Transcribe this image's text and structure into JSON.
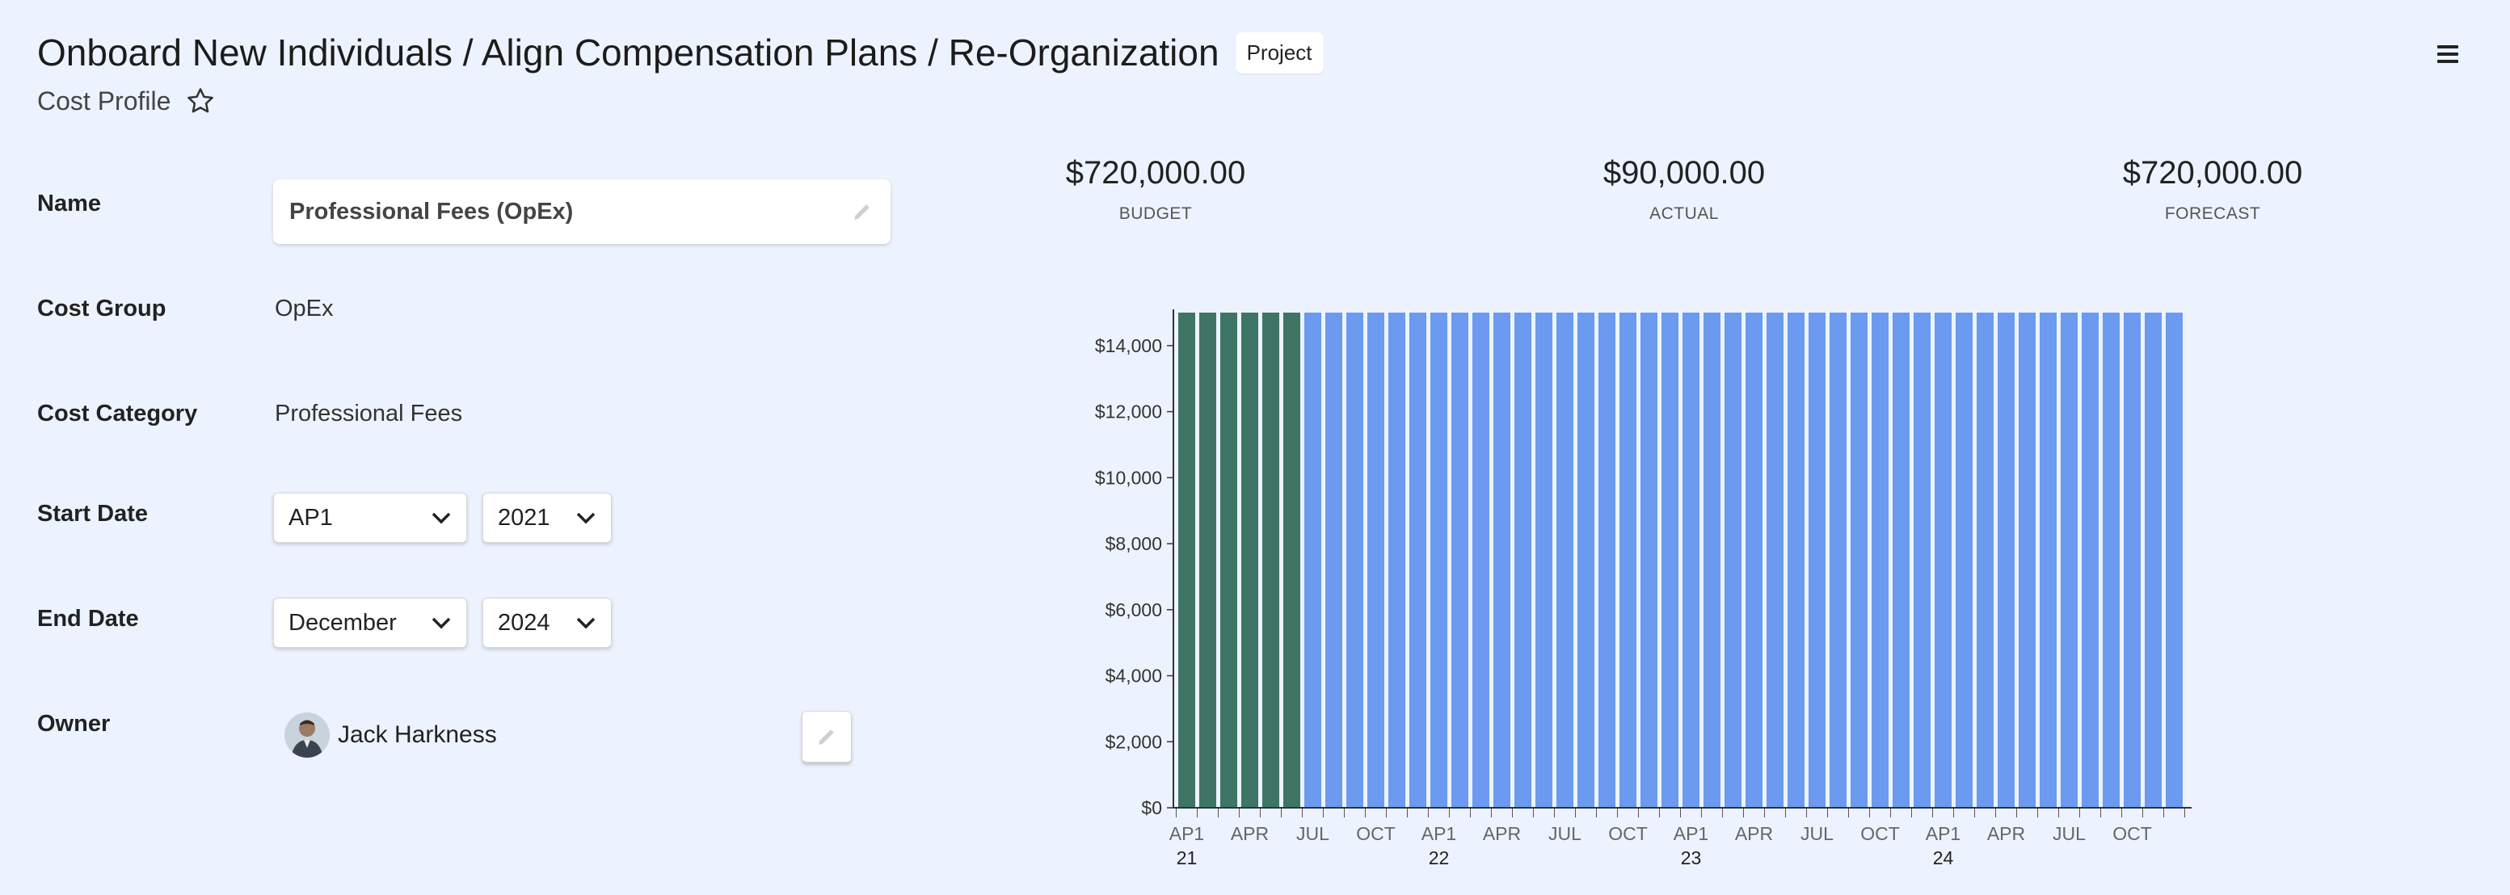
{
  "header": {
    "title": "Onboard New Individuals / Align Compensation Plans / Re-Organization",
    "badge": "Project",
    "menu_icon": "hamburger-menu-icon"
  },
  "subtitle": {
    "text": "Cost Profile",
    "icon": "star-outline-icon"
  },
  "form": {
    "name_label": "Name",
    "name_value": "Professional Fees (OpEx)",
    "cost_group_label": "Cost Group",
    "cost_group_value": "OpEx",
    "cost_category_label": "Cost Category",
    "cost_category_value": "Professional Fees",
    "start_date_label": "Start Date",
    "start_period": "AP1",
    "start_year": "2021",
    "end_date_label": "End Date",
    "end_period": "December",
    "end_year": "2024",
    "owner_label": "Owner",
    "owner_name": "Jack Harkness"
  },
  "kpis": [
    {
      "amount": "$720,000.00",
      "label": "BUDGET"
    },
    {
      "amount": "$90,000.00",
      "label": "ACTUAL"
    },
    {
      "amount": "$720,000.00",
      "label": "FORECAST"
    }
  ],
  "colors": {
    "actual": "#3e7565",
    "forecast": "#6b9af0",
    "background": "#edf3fe"
  },
  "chart_data": {
    "type": "bar",
    "ylim": [
      0,
      15000
    ],
    "ytick_labels": [
      "$0",
      "$2,000",
      "$4,000",
      "$6,000",
      "$8,000",
      "$10,000",
      "$12,000",
      "$14,000"
    ],
    "ytick_values": [
      0,
      2000,
      4000,
      6000,
      8000,
      10000,
      12000,
      14000
    ],
    "x_tick_labels": [
      {
        "index": 0,
        "label": "AP1"
      },
      {
        "index": 3,
        "label": "APR"
      },
      {
        "index": 6,
        "label": "JUL"
      },
      {
        "index": 9,
        "label": "OCT"
      },
      {
        "index": 12,
        "label": "AP1"
      },
      {
        "index": 15,
        "label": "APR"
      },
      {
        "index": 18,
        "label": "JUL"
      },
      {
        "index": 21,
        "label": "OCT"
      },
      {
        "index": 24,
        "label": "AP1"
      },
      {
        "index": 27,
        "label": "APR"
      },
      {
        "index": 30,
        "label": "JUL"
      },
      {
        "index": 33,
        "label": "OCT"
      },
      {
        "index": 36,
        "label": "AP1"
      },
      {
        "index": 39,
        "label": "APR"
      },
      {
        "index": 42,
        "label": "JUL"
      },
      {
        "index": 45,
        "label": "OCT"
      }
    ],
    "x_year_labels": [
      {
        "index": 0,
        "label": "21"
      },
      {
        "index": 12,
        "label": "22"
      },
      {
        "index": 24,
        "label": "23"
      },
      {
        "index": 36,
        "label": "24"
      }
    ],
    "series": [
      {
        "values": [
          15000,
          15000,
          15000,
          15000,
          15000,
          15000
        ]
      },
      {
        "values": [
          15000,
          15000,
          15000,
          15000,
          15000,
          15000,
          15000,
          15000,
          15000,
          15000,
          15000,
          15000,
          15000,
          15000,
          15000,
          15000,
          15000,
          15000,
          15000,
          15000,
          15000,
          15000,
          15000,
          15000,
          15000,
          15000,
          15000,
          15000,
          15000,
          15000,
          15000,
          15000,
          15000,
          15000,
          15000,
          15000,
          15000,
          15000,
          15000,
          15000,
          15000,
          15000
        ]
      }
    ]
  }
}
